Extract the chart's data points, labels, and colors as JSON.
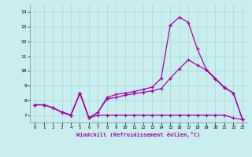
{
  "title": "",
  "xlabel": "Windchill (Refroidissement éolien,°C)",
  "background_color": "#c8eef0",
  "line_color": "#aa00aa",
  "x_values": [
    0,
    1,
    2,
    3,
    4,
    5,
    6,
    7,
    8,
    9,
    10,
    11,
    12,
    13,
    14,
    15,
    16,
    17,
    18,
    19,
    20,
    21,
    22,
    23
  ],
  "line1": [
    7.7,
    7.7,
    7.5,
    7.2,
    7.0,
    8.5,
    6.8,
    7.2,
    8.2,
    8.4,
    8.5,
    8.6,
    8.75,
    8.9,
    9.5,
    13.1,
    13.65,
    13.3,
    11.5,
    10.1,
    9.5,
    8.9,
    8.5,
    6.7
  ],
  "line2": [
    7.7,
    7.7,
    7.5,
    7.2,
    7.0,
    8.5,
    6.8,
    7.2,
    8.1,
    8.2,
    8.35,
    8.45,
    8.55,
    8.65,
    8.8,
    9.5,
    10.15,
    10.75,
    10.4,
    10.05,
    9.45,
    8.85,
    8.5,
    6.7
  ],
  "line3": [
    7.7,
    7.7,
    7.5,
    7.2,
    7.0,
    8.5,
    6.8,
    7.0,
    7.0,
    7.0,
    7.0,
    7.0,
    7.0,
    7.0,
    7.0,
    7.0,
    7.0,
    7.0,
    7.0,
    7.0,
    7.0,
    7.0,
    6.8,
    6.7
  ],
  "ylim": [
    6.5,
    14.5
  ],
  "yticks": [
    7,
    8,
    9,
    10,
    11,
    12,
    13,
    14
  ],
  "xlim": [
    -0.5,
    23.5
  ],
  "grid_color": "#a8d8cc"
}
